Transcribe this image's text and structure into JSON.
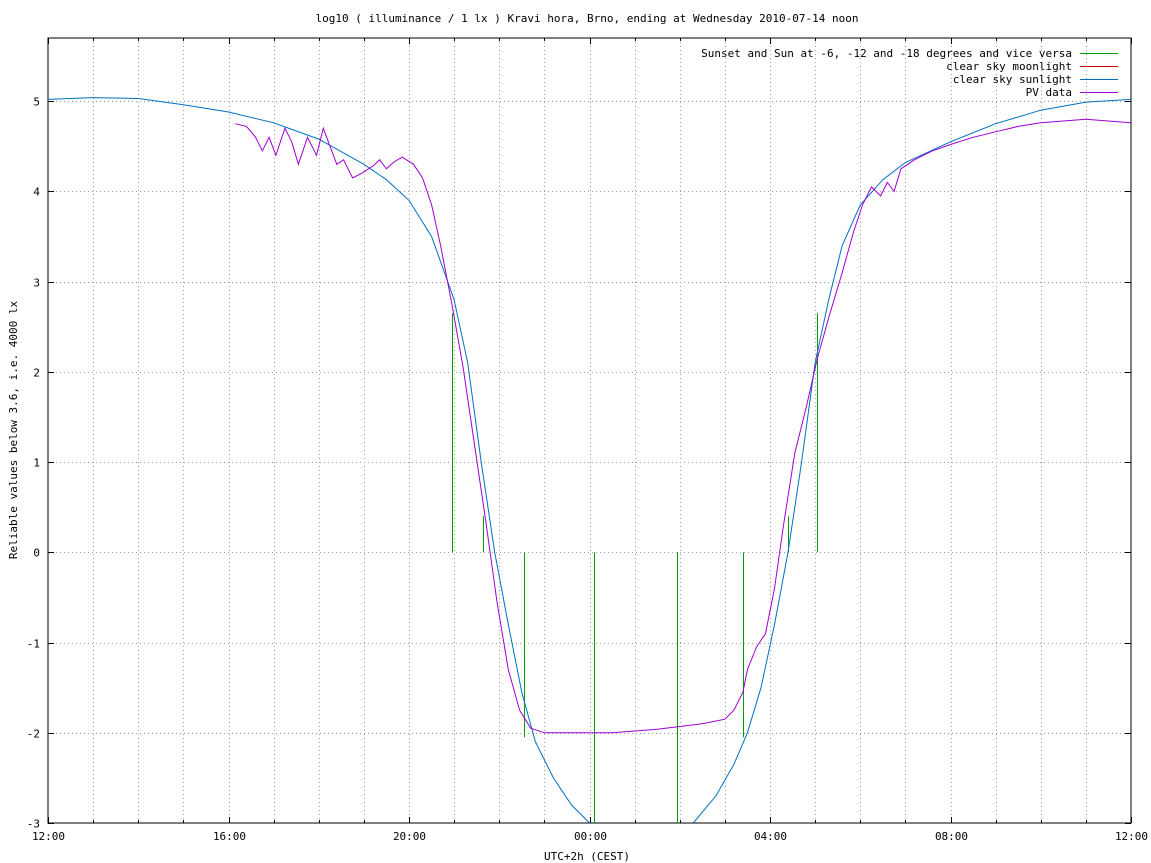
{
  "chart_data": {
    "type": "line",
    "title": "log10 ( illuminance / 1 lx ) Kravi hora, Brno, ending at Wednesday 2010-07-14 noon",
    "xlabel": "UTC+2h (CEST)",
    "ylabel": "Reliable values below 3.6, i.e. 4000 lx",
    "xlim": [
      12,
      36
    ],
    "ylim": [
      -3,
      5.7
    ],
    "x_ticks": [
      12,
      16,
      20,
      24,
      28,
      32,
      36
    ],
    "x_tick_labels": [
      "12:00",
      "16:00",
      "20:00",
      "00:00",
      "04:00",
      "08:00",
      "12:00"
    ],
    "x_grid_step_hours": 1,
    "y_ticks": [
      -3,
      -2,
      -1,
      0,
      1,
      2,
      3,
      4,
      5
    ],
    "y_tick_labels": [
      "-3",
      "-2",
      "-1",
      "0",
      "1",
      "2",
      "3",
      "4",
      "5"
    ],
    "grid": true,
    "legend_position": "top-right",
    "series": [
      {
        "name": "Sunset and Sun at -6, -12 and -18 degrees and vice versa",
        "color": "#00a000",
        "kind": "impulses",
        "points": [
          {
            "x": 20.95,
            "y0": 0,
            "y1": 2.65
          },
          {
            "x": 21.65,
            "y0": 0,
            "y1": 0.4
          },
          {
            "x": 22.55,
            "y0": -2.05,
            "y1": 0
          },
          {
            "x": 24.1,
            "y0": -3,
            "y1": 0
          },
          {
            "x": 25.95,
            "y0": -3,
            "y1": 0
          },
          {
            "x": 27.4,
            "y0": -2.05,
            "y1": 0
          },
          {
            "x": 28.4,
            "y0": 0,
            "y1": 0.4
          },
          {
            "x": 29.05,
            "y0": 0,
            "y1": 2.65
          }
        ]
      },
      {
        "name": "clear sky moonlight",
        "color": "#cc0000",
        "kind": "line",
        "points": []
      },
      {
        "name": "clear sky sunlight",
        "color": "#0070c0",
        "kind": "line",
        "points": [
          [
            12,
            5.02
          ],
          [
            13,
            5.04
          ],
          [
            14,
            5.03
          ],
          [
            15,
            4.96
          ],
          [
            16,
            4.88
          ],
          [
            17,
            4.76
          ],
          [
            18,
            4.58
          ],
          [
            19,
            4.3
          ],
          [
            19.5,
            4.13
          ],
          [
            20,
            3.9
          ],
          [
            20.5,
            3.5
          ],
          [
            21,
            2.8
          ],
          [
            21.3,
            2.1
          ],
          [
            21.6,
            1.0
          ],
          [
            21.9,
            0.0
          ],
          [
            22.2,
            -0.8
          ],
          [
            22.5,
            -1.55
          ],
          [
            22.8,
            -2.1
          ],
          [
            23.2,
            -2.5
          ],
          [
            23.6,
            -2.8
          ],
          [
            24,
            -3.0
          ],
          [
            24.2,
            -3.1
          ],
          [
            24.8,
            -3.3
          ],
          [
            25.4,
            -3.35
          ],
          [
            25.9,
            -3.2
          ],
          [
            26.3,
            -3.0
          ],
          [
            26.8,
            -2.7
          ],
          [
            27.2,
            -2.35
          ],
          [
            27.5,
            -2.0
          ],
          [
            27.8,
            -1.5
          ],
          [
            28.1,
            -0.8
          ],
          [
            28.4,
            0.0
          ],
          [
            28.7,
            1.0
          ],
          [
            29.0,
            2.1
          ],
          [
            29.3,
            2.8
          ],
          [
            29.6,
            3.4
          ],
          [
            30,
            3.85
          ],
          [
            30.5,
            4.13
          ],
          [
            31,
            4.32
          ],
          [
            32,
            4.55
          ],
          [
            33,
            4.75
          ],
          [
            34,
            4.9
          ],
          [
            35,
            4.99
          ],
          [
            36,
            5.02
          ]
        ]
      },
      {
        "name": "PV data",
        "color": "#a000d0",
        "kind": "line",
        "points": [
          [
            16.15,
            4.75
          ],
          [
            16.4,
            4.72
          ],
          [
            16.6,
            4.6
          ],
          [
            16.75,
            4.45
          ],
          [
            16.9,
            4.6
          ],
          [
            17.05,
            4.4
          ],
          [
            17.25,
            4.7
          ],
          [
            17.4,
            4.55
          ],
          [
            17.55,
            4.3
          ],
          [
            17.75,
            4.6
          ],
          [
            17.95,
            4.4
          ],
          [
            18.1,
            4.7
          ],
          [
            18.25,
            4.5
          ],
          [
            18.4,
            4.3
          ],
          [
            18.55,
            4.35
          ],
          [
            18.75,
            4.15
          ],
          [
            18.95,
            4.2
          ],
          [
            19.2,
            4.28
          ],
          [
            19.35,
            4.35
          ],
          [
            19.5,
            4.25
          ],
          [
            19.65,
            4.32
          ],
          [
            19.85,
            4.38
          ],
          [
            20.1,
            4.3
          ],
          [
            20.3,
            4.15
          ],
          [
            20.5,
            3.85
          ],
          [
            20.7,
            3.4
          ],
          [
            20.95,
            2.75
          ],
          [
            21.2,
            2.05
          ],
          [
            21.45,
            1.2
          ],
          [
            21.7,
            0.35
          ],
          [
            21.95,
            -0.55
          ],
          [
            22.2,
            -1.3
          ],
          [
            22.45,
            -1.75
          ],
          [
            22.7,
            -1.95
          ],
          [
            23.0,
            -2.0
          ],
          [
            23.5,
            -2.0
          ],
          [
            24.0,
            -2.0
          ],
          [
            24.5,
            -2.0
          ],
          [
            25.0,
            -1.98
          ],
          [
            25.5,
            -1.96
          ],
          [
            26.0,
            -1.93
          ],
          [
            26.5,
            -1.9
          ],
          [
            27.0,
            -1.85
          ],
          [
            27.2,
            -1.75
          ],
          [
            27.4,
            -1.55
          ],
          [
            27.5,
            -1.3
          ],
          [
            27.7,
            -1.05
          ],
          [
            27.9,
            -0.9
          ],
          [
            28.1,
            -0.4
          ],
          [
            28.3,
            0.3
          ],
          [
            28.55,
            1.1
          ],
          [
            28.8,
            1.6
          ],
          [
            29.05,
            2.15
          ],
          [
            29.3,
            2.6
          ],
          [
            29.6,
            3.1
          ],
          [
            29.85,
            3.55
          ],
          [
            30.05,
            3.85
          ],
          [
            30.25,
            4.05
          ],
          [
            30.45,
            3.95
          ],
          [
            30.6,
            4.1
          ],
          [
            30.75,
            4.0
          ],
          [
            30.9,
            4.25
          ],
          [
            31.2,
            4.35
          ],
          [
            31.6,
            4.45
          ],
          [
            32,
            4.52
          ],
          [
            32.5,
            4.6
          ],
          [
            33,
            4.66
          ],
          [
            33.5,
            4.72
          ],
          [
            34,
            4.76
          ],
          [
            34.5,
            4.78
          ],
          [
            35,
            4.8
          ],
          [
            35.5,
            4.78
          ],
          [
            36,
            4.76
          ]
        ]
      }
    ]
  }
}
